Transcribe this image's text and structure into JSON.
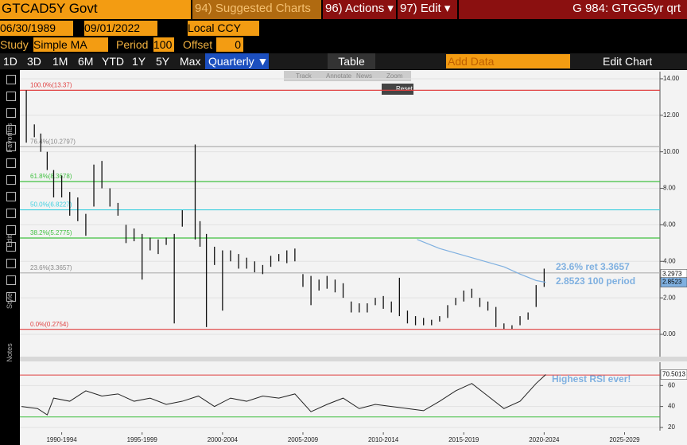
{
  "header": {
    "security": "GTCAD5Y Govt",
    "suggested": "94) Suggested Charts",
    "actions": "96) Actions ▾",
    "edit": "97) Edit ▾",
    "page": "G 984: GTGG5yr qrt"
  },
  "controls": {
    "start": "06/30/1989",
    "end": "09/01/2022",
    "currency": "Local CCY",
    "study_label": "Study",
    "study": "Simple MA",
    "period_label": "Period",
    "period": "100",
    "offset_label": "Offset",
    "offset": "0"
  },
  "ranges": [
    "1D",
    "3D",
    "1M",
    "6M",
    "YTD",
    "1Y",
    "5Y",
    "Max"
  ],
  "frequency": "Quarterly ▼",
  "table": "Table",
  "add_data": "Add Data",
  "edit_chart": "Edit Chart",
  "chart_tools": [
    "Track",
    "Annotate",
    "News",
    "Zoom"
  ],
  "reset": "Reset",
  "sidebar": [
    "Favorites",
    "Edit",
    "Style",
    "Notes"
  ],
  "chart_data": [
    {
      "type": "hilo",
      "xlim": [
        1989.9,
        2029.7
      ],
      "ylim": [
        -1.22,
        14.39
      ],
      "yticks": [
        {
          "value": 14,
          "label": "14.00"
        },
        {
          "value": 12,
          "label": "12.00"
        },
        {
          "value": 10,
          "label": "10.00"
        },
        {
          "value": 8,
          "label": "8.00"
        },
        {
          "value": 6,
          "label": "6.00"
        },
        {
          "value": 4,
          "label": "4.00"
        },
        {
          "value": 2,
          "label": "2.00"
        },
        {
          "value": 0,
          "label": "0.00"
        }
      ],
      "color": "#111111",
      "x": [
        1990.3,
        1990.8,
        1991.2,
        1991.6,
        1992.0,
        1992.5,
        1993.0,
        1993.5,
        1994.0,
        1994.5,
        1995.0,
        1995.5,
        1996.0,
        1996.5,
        1997.0,
        1997.5,
        1998.0,
        1998.5,
        1999.0,
        1999.5,
        2000.0,
        2000.8,
        2001.1,
        2001.5,
        2002.0,
        2002.5,
        2003.0,
        2003.5,
        2004.0,
        2004.5,
        2005.0,
        2005.5,
        2006.0,
        2006.5,
        2007.0,
        2007.5,
        2008.0,
        2008.5,
        2009.0,
        2009.5,
        2010.0,
        2010.5,
        2011.0,
        2011.5,
        2012.0,
        2012.5,
        2013.0,
        2013.5,
        2014.0,
        2014.5,
        2015.0,
        2015.5,
        2016.0,
        2016.5,
        2017.0,
        2017.5,
        2018.0,
        2018.5,
        2019.0,
        2019.5,
        2020.0,
        2020.5,
        2021.0,
        2021.5,
        2022.0,
        2022.5
      ],
      "high": [
        13.37,
        11.5,
        11.0,
        10.0,
        9.0,
        8.7,
        7.8,
        7.5,
        6.6,
        9.3,
        9.5,
        8.0,
        7.2,
        6.0,
        5.8,
        5.5,
        5.3,
        5.2,
        5.3,
        5.5,
        6.8,
        10.4,
        6.2,
        5.5,
        4.8,
        4.6,
        4.6,
        4.4,
        4.2,
        4.0,
        3.8,
        4.3,
        4.4,
        4.6,
        4.7,
        3.3,
        3.2,
        3.0,
        3.2,
        3.0,
        2.8,
        1.8,
        1.7,
        1.7,
        2.0,
        2.1,
        1.8,
        3.1,
        1.3,
        1.0,
        0.9,
        0.8,
        1.0,
        1.6,
        2.0,
        2.4,
        2.5,
        2.0,
        1.8,
        1.5,
        0.6,
        0.5,
        1.0,
        1.2,
        2.7,
        3.6
      ],
      "low": [
        10.5,
        10.8,
        10.0,
        9.0,
        7.5,
        7.5,
        6.5,
        6.2,
        5.4,
        7.0,
        8.0,
        7.0,
        6.5,
        5.0,
        5.1,
        3.0,
        4.6,
        4.4,
        4.9,
        0.6,
        5.9,
        5.2,
        4.8,
        0.4,
        3.8,
        1.3,
        4.0,
        3.6,
        3.6,
        3.4,
        3.3,
        3.7,
        4.0,
        3.9,
        4.0,
        2.6,
        1.6,
        2.4,
        2.5,
        2.3,
        2.0,
        1.2,
        1.2,
        1.2,
        1.6,
        1.4,
        1.2,
        1.0,
        0.6,
        0.5,
        0.5,
        0.5,
        0.7,
        0.9,
        1.6,
        1.8,
        2.0,
        1.5,
        1.3,
        0.4,
        0.3,
        0.3,
        0.5,
        0.8,
        1.5,
        2.6
      ],
      "ma": {
        "color": "#7fb0e0",
        "x": [
          2014.6,
          2016.0,
          2018.0,
          2020.0,
          2021.0,
          2022.0,
          2022.6
        ],
        "values": [
          5.2,
          4.7,
          4.2,
          3.7,
          3.3,
          2.95,
          2.8523
        ]
      },
      "levels": [
        {
          "label": "100.0%(13.37)",
          "value": 13.37,
          "color": "#e04040"
        },
        {
          "label": "76.4%(10.2797)",
          "value": 10.2797,
          "color": "#b0b0b0"
        },
        {
          "label": "61.8%(8.3678)",
          "value": 8.3678,
          "color": "#40c040"
        },
        {
          "label": "50.0%(6.8227)",
          "value": 6.8227,
          "color": "#40d0e0"
        },
        {
          "label": "38.2%(5.2775)",
          "value": 5.2775,
          "color": "#40c040"
        },
        {
          "label": "23.6%(3.3657)",
          "value": 3.3657,
          "color": "#b0b0b0"
        },
        {
          "label": "0.0%(0.2754)",
          "value": 0.2754,
          "color": "#e04040"
        }
      ],
      "last_labels": [
        {
          "value": 3.2973,
          "label": "3.2973",
          "color": "#ffffff"
        },
        {
          "value": 2.8523,
          "label": "2.8523",
          "color": "#7fb0e0"
        }
      ],
      "annotations": [
        "23.6% ret 3.3657",
        "2.8523 100 period"
      ]
    },
    {
      "type": "line",
      "xlim": [
        1989.9,
        2029.7
      ],
      "ylim": [
        16.9,
        82.3
      ],
      "yticks": [
        20,
        40,
        60
      ],
      "color": "#222222",
      "x": [
        1990,
        1991,
        1991.6,
        1992,
        1993,
        1994,
        1995,
        1996,
        1997,
        1998,
        1999,
        2000,
        2001,
        2002,
        2003,
        2004,
        2005,
        2006,
        2007,
        2008,
        2009,
        2010,
        2011,
        2012,
        2013,
        2014,
        2015,
        2016,
        2017,
        2018,
        2019,
        2020,
        2021,
        2022,
        2022.6
      ],
      "values": [
        40,
        38,
        32,
        48,
        45,
        55,
        50,
        52,
        45,
        48,
        42,
        45,
        50,
        40,
        48,
        45,
        50,
        48,
        52,
        35,
        42,
        48,
        38,
        42,
        40,
        38,
        36,
        45,
        55,
        62,
        50,
        38,
        45,
        62,
        70.5013
      ],
      "levels": [
        {
          "value": 70,
          "color": "#e04040"
        },
        {
          "value": 30,
          "color": "#40c040"
        }
      ],
      "last_label": {
        "value": 70.5013,
        "label": "70.5013"
      },
      "annotation": "Highest RSI ever!",
      "xticks": [
        {
          "value": 1992.5,
          "label": "1990-1994"
        },
        {
          "value": 1997.5,
          "label": "1995-1999"
        },
        {
          "value": 2002.5,
          "label": "2000-2004"
        },
        {
          "value": 2007.5,
          "label": "2005-2009"
        },
        {
          "value": 2012.5,
          "label": "2010-2014"
        },
        {
          "value": 2017.5,
          "label": "2015-2019"
        },
        {
          "value": 2022.5,
          "label": "2020-2024"
        },
        {
          "value": 2027.5,
          "label": "2025-2029"
        }
      ]
    }
  ]
}
